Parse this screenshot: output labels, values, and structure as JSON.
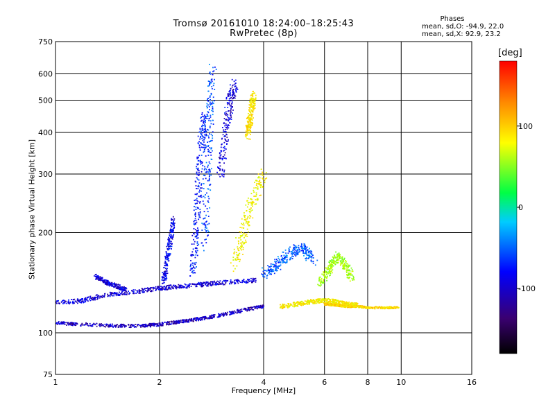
{
  "header": {
    "title_line1": "Tromsø 20161010 18:24:00–18:25:43",
    "title_line2": "RwPretec (8p)"
  },
  "phases": {
    "title": "Phases",
    "o_mode": "mean, sd,O: -94.9, 22.0",
    "x_mode": "mean, sd,X:  92.9, 23.2"
  },
  "colorbar": {
    "title": "[deg]",
    "range": [
      -180,
      180
    ],
    "ticks": [
      "100",
      "0",
      "-100"
    ],
    "tick_values": [
      100,
      0,
      -100
    ]
  },
  "chart_data": {
    "type": "scatter",
    "title": "Tromsø 20161010 18:24:00–18:25:43",
    "subtitle": "RwPretec (8p)",
    "xlabel": "Frequency [MHz]",
    "ylabel": "Stationary phase Virtual Height [km]",
    "x_scale": "log",
    "y_scale": "log",
    "xlim": [
      1,
      16
    ],
    "ylim": [
      75,
      750
    ],
    "x_ticks": [
      1,
      2,
      4,
      6,
      8,
      10,
      16
    ],
    "x_tick_labels": [
      "1",
      "2",
      "4",
      "6",
      "8",
      "10",
      "16"
    ],
    "y_ticks": [
      75,
      100,
      200,
      300,
      400,
      500,
      600,
      750
    ],
    "y_tick_labels": [
      "75",
      "100",
      "200",
      "300",
      "400",
      "500",
      "600",
      "750"
    ],
    "grid": true,
    "color_variable": "phase [deg]",
    "traces": [
      {
        "f": [
          1.0,
          1.2,
          1.5,
          1.8,
          2.0,
          2.3,
          2.6,
          3.0,
          3.5,
          4.0
        ],
        "h": [
          107,
          106,
          105,
          105,
          106,
          108,
          110,
          113,
          117,
          120
        ],
        "phase": -118,
        "spread": 0.015
      },
      {
        "f": [
          1.0,
          1.2,
          1.4,
          1.7,
          2.0,
          2.3,
          2.7,
          3.2,
          3.8
        ],
        "h": [
          123,
          125,
          130,
          133,
          136,
          138,
          140,
          142,
          144
        ],
        "phase": -112,
        "spread": 0.02
      },
      {
        "f": [
          1.3,
          1.4,
          1.5,
          1.6
        ],
        "h": [
          148,
          142,
          138,
          135
        ],
        "phase": -110,
        "spread": 0.02
      },
      {
        "f": [
          2.05,
          2.1,
          2.15,
          2.2
        ],
        "h": [
          140,
          165,
          190,
          220
        ],
        "phase": -105,
        "spread": 0.03
      },
      {
        "f": [
          2.5,
          2.55,
          2.6,
          2.65,
          2.7
        ],
        "h": [
          150,
          200,
          280,
          380,
          450
        ],
        "phase": -95,
        "spread": 0.05
      },
      {
        "f": [
          2.7,
          2.75,
          2.8,
          2.85
        ],
        "h": [
          180,
          300,
          450,
          620
        ],
        "phase": -85,
        "spread": 0.05
      },
      {
        "f": [
          3.0,
          3.1,
          3.2,
          3.3
        ],
        "h": [
          300,
          400,
          500,
          560
        ],
        "phase": -110,
        "spread": 0.05
      },
      {
        "f": [
          3.6,
          3.65,
          3.7,
          3.75
        ],
        "h": [
          390,
          430,
          480,
          520
        ],
        "phase": 100,
        "spread": 0.04
      },
      {
        "f": [
          3.3,
          3.5,
          3.7,
          4.0
        ],
        "h": [
          160,
          200,
          250,
          300
        ],
        "phase": 90,
        "spread": 0.06
      },
      {
        "f": [
          4.0,
          4.4,
          4.8,
          5.2,
          5.6
        ],
        "h": [
          150,
          160,
          175,
          180,
          165
        ],
        "phase": -80,
        "spread": 0.05
      },
      {
        "f": [
          4.5,
          5.0,
          5.5,
          6.0,
          6.5,
          7.0,
          7.5
        ],
        "h": [
          120,
          122,
          124,
          125,
          124,
          122,
          121
        ],
        "phase": 95,
        "spread": 0.02
      },
      {
        "f": [
          6.0,
          6.5,
          7.0,
          7.5,
          8.0,
          9.0,
          9.8
        ],
        "h": [
          122,
          121,
          120,
          120,
          119,
          119,
          119
        ],
        "phase": 105,
        "spread": 0.01
      },
      {
        "f": [
          5.8,
          6.2,
          6.5,
          6.9,
          7.2
        ],
        "h": [
          140,
          155,
          170,
          160,
          145
        ],
        "phase": 60,
        "spread": 0.04
      }
    ]
  }
}
